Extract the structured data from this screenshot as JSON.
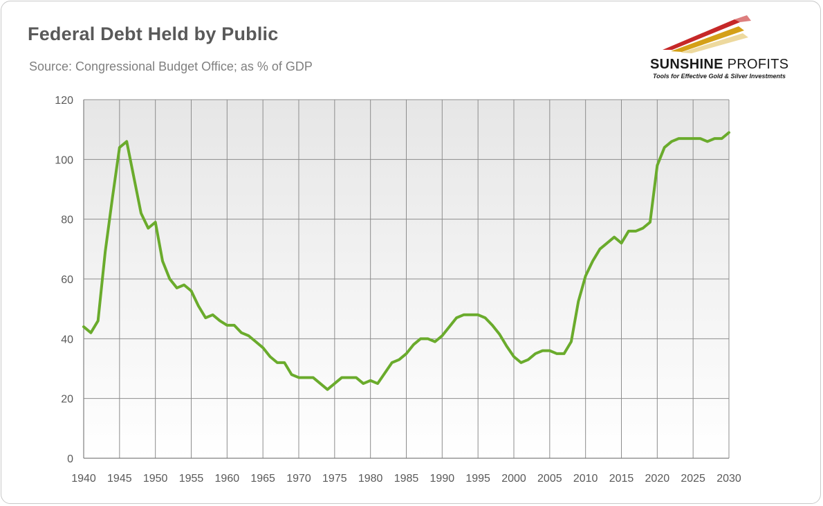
{
  "title": "Federal Debt Held by Public",
  "subtitle": "Source: Congressional Budget Office; as % of GDP",
  "logo": {
    "name_bold": "SUNSHINE",
    "name_light": "PROFITS",
    "tagline": "Tools for Effective Gold & Silver Investments"
  },
  "colors": {
    "line": "#6aab2c",
    "grid": "#8c8c8c",
    "plot_top": "#e6e6e6",
    "plot_bottom": "#ffffff",
    "text": "#595959"
  },
  "chart_data": {
    "type": "line",
    "title": "Federal Debt Held by Public",
    "xlabel": "",
    "ylabel": "",
    "xlim": [
      1940,
      2030
    ],
    "ylim": [
      0,
      120
    ],
    "x_ticks": [
      "1940",
      "1945",
      "1950",
      "1955",
      "1960",
      "1965",
      "1970",
      "1975",
      "1980",
      "1985",
      "1990",
      "1995",
      "2000",
      "2005",
      "2010",
      "2015",
      "2020",
      "2025",
      "2030"
    ],
    "y_ticks": [
      "0",
      "20",
      "40",
      "60",
      "80",
      "100",
      "120"
    ],
    "grid": true,
    "legend": "none",
    "series": [
      {
        "x": [
          1940,
          1941,
          1942,
          1943,
          1944,
          1945,
          1946,
          1947,
          1948,
          1949,
          1950,
          1951,
          1952,
          1953,
          1954,
          1955,
          1956,
          1957,
          1958,
          1959,
          1960,
          1961,
          1962,
          1963,
          1964,
          1965,
          1966,
          1967,
          1968,
          1969,
          1970,
          1971,
          1972,
          1973,
          1974,
          1975,
          1976,
          1977,
          1978,
          1979,
          1980,
          1981,
          1982,
          1983,
          1984,
          1985,
          1986,
          1987,
          1988,
          1989,
          1990,
          1991,
          1992,
          1993,
          1994,
          1995,
          1996,
          1997,
          1998,
          1999,
          2000,
          2001,
          2002,
          2003,
          2004,
          2005,
          2006,
          2007,
          2008,
          2009,
          2010,
          2011,
          2012,
          2013,
          2014,
          2015,
          2016,
          2017,
          2018,
          2019,
          2020,
          2021,
          2022,
          2023,
          2024,
          2025,
          2026,
          2027,
          2028,
          2029,
          2030
        ],
        "y": [
          44,
          42,
          46,
          69,
          87,
          104,
          106,
          94,
          82,
          77,
          79,
          66,
          60,
          57,
          58,
          56,
          51,
          47,
          48,
          46,
          44.5,
          44.5,
          42,
          41,
          39,
          37,
          34,
          32,
          32,
          28,
          27,
          27,
          27,
          25,
          23,
          25,
          27,
          27,
          27,
          25,
          26,
          25,
          28.5,
          32,
          33,
          35,
          38,
          40,
          40,
          39,
          41,
          44,
          47,
          48,
          48,
          48,
          47,
          44.5,
          41.5,
          37.5,
          34,
          32,
          33,
          35,
          36,
          36,
          35,
          35,
          39,
          52.5,
          61,
          66,
          70,
          72,
          74,
          72,
          76,
          76,
          77,
          79,
          98,
          104,
          106,
          107,
          107,
          107,
          107,
          106,
          107,
          107,
          109
        ]
      }
    ]
  }
}
